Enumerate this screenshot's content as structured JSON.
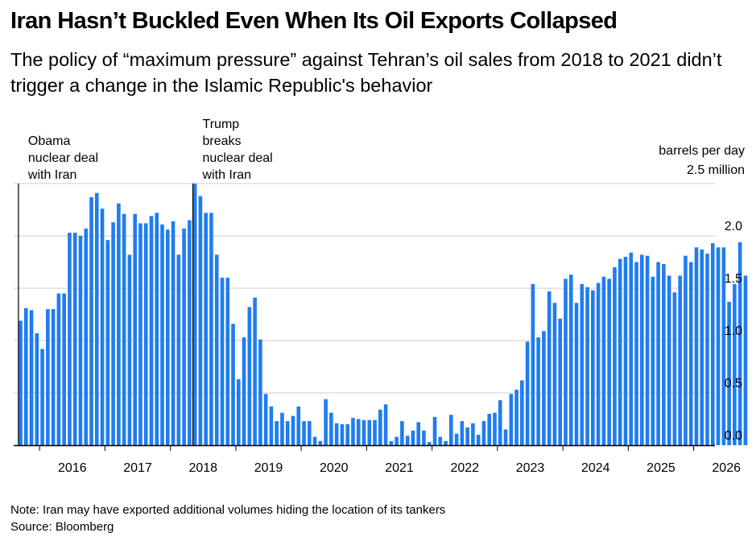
{
  "title": "Iran Hasn’t Buckled Even When Its Oil Exports Collapsed",
  "subtitle": "The policy of “maximum pressure” against Tehran’s oil sales from 2018 to 2021 didn’t trigger a change in the Islamic Republic's behavior",
  "footer": {
    "note": "Note: Iran may have exported additional volumes hiding the location of its tankers",
    "source": "Source: Bloomberg"
  },
  "colors": {
    "bar": "#1f7cf2",
    "grid": "#cccccc",
    "axis": "#000000"
  },
  "chart_data": {
    "type": "bar",
    "unit_label": "barrels per day",
    "ylim": [
      0,
      2.5
    ],
    "y_ticks": [
      {
        "value": 0.0,
        "label": "0.0"
      },
      {
        "value": 0.5,
        "label": "0.5"
      },
      {
        "value": 1.0,
        "label": "1.0"
      },
      {
        "value": 1.5,
        "label": "1.5"
      },
      {
        "value": 2.0,
        "label": "2.0"
      },
      {
        "value": 2.5,
        "label": "2.5 million"
      }
    ],
    "x_ticks": [
      "2016",
      "2017",
      "2018",
      "2019",
      "2020",
      "2021",
      "2022",
      "2023",
      "2024",
      "2025",
      "2026"
    ],
    "grid": true,
    "first_month": "2015-09",
    "frequency": "monthly",
    "values": [
      1.19,
      1.31,
      1.29,
      1.07,
      0.92,
      1.3,
      1.3,
      1.45,
      1.45,
      2.03,
      2.03,
      2.0,
      2.07,
      2.37,
      2.41,
      2.26,
      1.96,
      2.13,
      2.31,
      2.21,
      1.82,
      2.21,
      2.12,
      2.12,
      2.19,
      2.22,
      2.11,
      2.06,
      2.14,
      1.82,
      2.07,
      2.15,
      2.5,
      2.38,
      2.22,
      2.22,
      1.82,
      1.6,
      1.6,
      1.16,
      0.63,
      1.03,
      1.32,
      1.41,
      1.01,
      0.49,
      0.37,
      0.23,
      0.31,
      0.23,
      0.28,
      0.37,
      0.23,
      0.23,
      0.08,
      0.04,
      0.44,
      0.31,
      0.21,
      0.2,
      0.2,
      0.26,
      0.25,
      0.24,
      0.24,
      0.24,
      0.34,
      0.39,
      0.04,
      0.08,
      0.23,
      0.09,
      0.14,
      0.22,
      0.14,
      0.03,
      0.27,
      0.08,
      0.04,
      0.29,
      0.11,
      0.23,
      0.17,
      0.21,
      0.1,
      0.23,
      0.3,
      0.31,
      0.43,
      0.15,
      0.49,
      0.53,
      0.62,
      0.99,
      1.54,
      1.03,
      1.09,
      1.47,
      1.36,
      1.21,
      1.59,
      1.63,
      1.36,
      1.54,
      1.51,
      1.48,
      1.55,
      1.61,
      1.59,
      1.7,
      1.78,
      1.8,
      1.84,
      1.75,
      1.82,
      1.81,
      1.61,
      1.75,
      1.73,
      1.62,
      1.46,
      1.62,
      1.81,
      1.75,
      1.89,
      1.87,
      1.83,
      1.93,
      1.89,
      1.89,
      1.37,
      1.54,
      1.94,
      1.62
    ],
    "annotations": [
      {
        "month": "2015-09",
        "lines": [
          "Obama",
          "nuclear deal",
          "with Iran"
        ]
      },
      {
        "month": "2018-05",
        "lines": [
          "Trump",
          "breaks",
          "nuclear deal",
          "with Iran"
        ]
      }
    ]
  }
}
